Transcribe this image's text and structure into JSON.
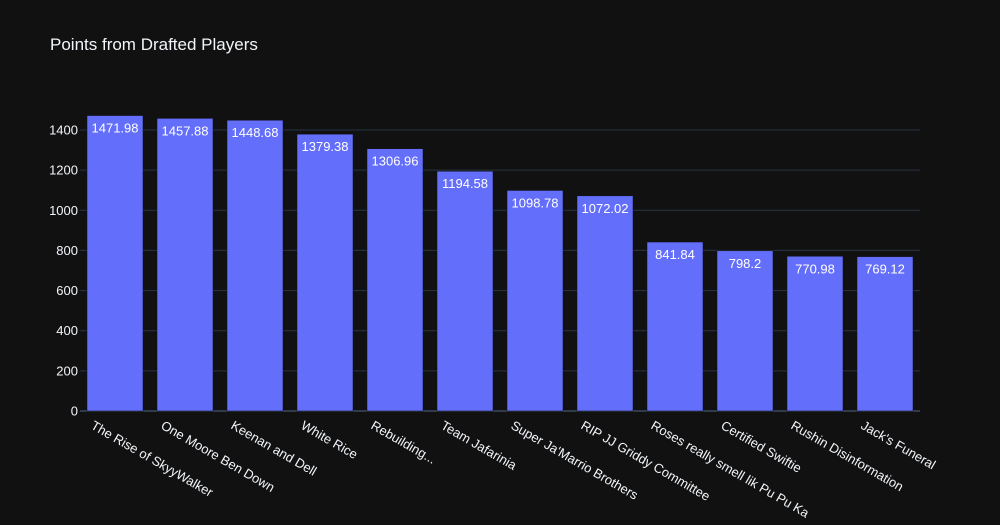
{
  "theme": {
    "background": "#111111",
    "plot_background": "#111111",
    "grid_color": "#283442",
    "bar_color": "#636efa",
    "text_color": "#f2f5fa"
  },
  "chart_data": {
    "type": "bar",
    "title": "Points from Drafted Players",
    "xlabel": "",
    "ylabel": "",
    "categories": [
      "The Rise of SkyyWalker",
      "One Moore Ben Down",
      "Keenan and Dell",
      "White Rice",
      "Rebuilding...",
      "Team Jafarinia",
      "Super Ja'Marrio Brothers",
      "RIP JJ Griddy Committee",
      "Roses really smell lik Pu Pu Ka",
      "Certified Swiftie",
      "Rushin Disinformation",
      "Jack's Funeral"
    ],
    "values": [
      1471.98,
      1457.88,
      1448.68,
      1379.38,
      1306.96,
      1194.58,
      1098.78,
      1072.02,
      841.84,
      798.2,
      770.98,
      769.12
    ],
    "data_labels": [
      "1471.98",
      "1457.88",
      "1448.68",
      "1379.38",
      "1306.96",
      "1194.58",
      "1098.78",
      "1072.02",
      "841.84",
      "798.2",
      "770.98",
      "769.12"
    ],
    "y_ticks": [
      0,
      200,
      400,
      600,
      800,
      1000,
      1200,
      1400
    ],
    "y_tick_labels": [
      "0",
      "200",
      "400",
      "600",
      "800",
      "1000",
      "1200",
      "1400"
    ],
    "ylim": [
      0,
      1549.45
    ],
    "grid": true,
    "legend": "none"
  }
}
